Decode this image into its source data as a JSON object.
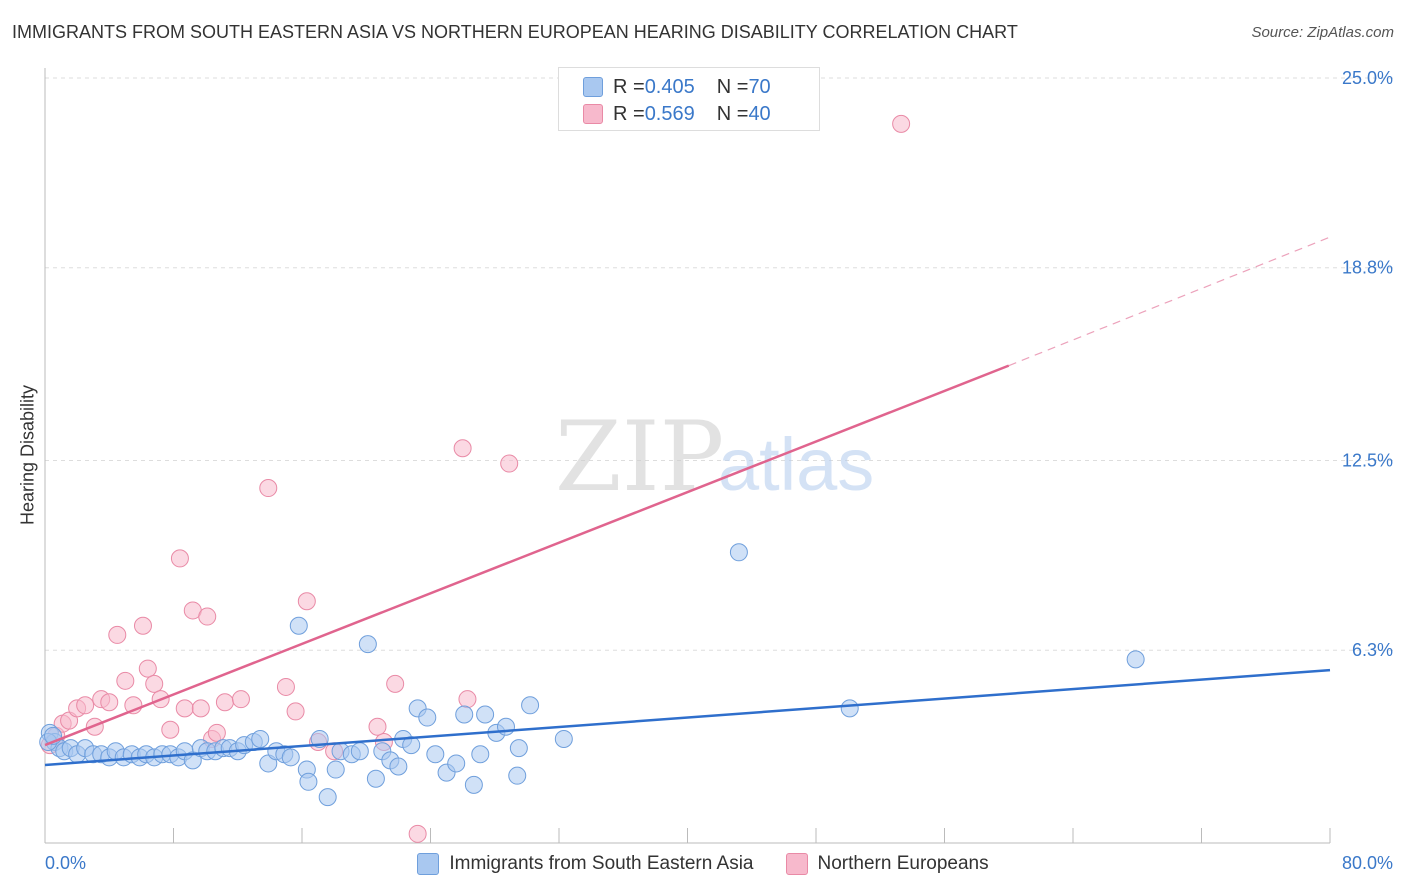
{
  "header": {
    "title": "IMMIGRANTS FROM SOUTH EASTERN ASIA VS NORTHERN EUROPEAN HEARING DISABILITY CORRELATION CHART",
    "source": "Source: ZipAtlas.com"
  },
  "legend": {
    "blue": {
      "r_label": "R = ",
      "r_value": "0.405",
      "n_label": "N = ",
      "n_value": "70"
    },
    "pink": {
      "r_label": "R = ",
      "r_value": "0.569",
      "n_label": "N = ",
      "n_value": "40"
    }
  },
  "watermark": {
    "zip": "ZIP",
    "atlas": "atlas"
  },
  "colors": {
    "blue_fill": "#a9c8f0",
    "blue_stroke": "#6f9fdc",
    "blue_line": "#2f6fcc",
    "pink_fill": "#f7b9cc",
    "pink_stroke": "#e98aa6",
    "pink_line": "#e0648e",
    "axis_label": "#3a78c9",
    "grid": "#dddddd"
  },
  "chart_data": {
    "type": "scatter",
    "title": "IMMIGRANTS FROM SOUTH EASTERN ASIA VS NORTHERN EUROPEAN HEARING DISABILITY CORRELATION CHART",
    "xlabel": "",
    "ylabel": "Hearing Disability",
    "xlim": [
      0,
      80
    ],
    "ylim": [
      0,
      25
    ],
    "x_tick_labels": [
      "0.0%",
      "80.0%"
    ],
    "y_ticks": [
      6.3,
      12.5,
      18.8,
      25.0
    ],
    "y_tick_labels": [
      "6.3%",
      "12.5%",
      "18.8%",
      "25.0%"
    ],
    "grid": true,
    "legend_position": "top-center",
    "series": [
      {
        "name": "Immigrants from South Eastern Asia",
        "color": "#a9c8f0",
        "points": [
          [
            0.3,
            3.6
          ],
          [
            0.6,
            3.3
          ],
          [
            0.9,
            3.1
          ],
          [
            1.2,
            3.0
          ],
          [
            1.6,
            3.1
          ],
          [
            2.0,
            2.9
          ],
          [
            2.5,
            3.1
          ],
          [
            3.0,
            2.9
          ],
          [
            3.5,
            2.9
          ],
          [
            4.0,
            2.8
          ],
          [
            4.4,
            3.0
          ],
          [
            4.9,
            2.8
          ],
          [
            5.4,
            2.9
          ],
          [
            5.9,
            2.8
          ],
          [
            6.3,
            2.9
          ],
          [
            6.8,
            2.8
          ],
          [
            7.3,
            2.9
          ],
          [
            7.8,
            2.9
          ],
          [
            8.3,
            2.8
          ],
          [
            8.7,
            3.0
          ],
          [
            9.2,
            2.7
          ],
          [
            9.7,
            3.1
          ],
          [
            10.1,
            3.0
          ],
          [
            10.6,
            3.0
          ],
          [
            11.1,
            3.1
          ],
          [
            11.5,
            3.1
          ],
          [
            12.0,
            3.0
          ],
          [
            12.4,
            3.2
          ],
          [
            13.0,
            3.3
          ],
          [
            13.4,
            3.4
          ],
          [
            13.9,
            2.6
          ],
          [
            14.4,
            3.0
          ],
          [
            14.9,
            2.9
          ],
          [
            15.3,
            2.8
          ],
          [
            15.8,
            7.1
          ],
          [
            16.3,
            2.4
          ],
          [
            16.4,
            2.0
          ],
          [
            17.1,
            3.4
          ],
          [
            17.6,
            1.5
          ],
          [
            18.1,
            2.4
          ],
          [
            18.4,
            3.0
          ],
          [
            19.1,
            2.9
          ],
          [
            19.6,
            3.0
          ],
          [
            20.1,
            6.5
          ],
          [
            20.6,
            2.1
          ],
          [
            21.0,
            3.0
          ],
          [
            21.5,
            2.7
          ],
          [
            22.0,
            2.5
          ],
          [
            22.3,
            3.4
          ],
          [
            22.8,
            3.2
          ],
          [
            23.2,
            4.4
          ],
          [
            23.8,
            4.1
          ],
          [
            24.3,
            2.9
          ],
          [
            25.0,
            2.3
          ],
          [
            25.6,
            2.6
          ],
          [
            26.1,
            4.2
          ],
          [
            26.7,
            1.9
          ],
          [
            27.1,
            2.9
          ],
          [
            27.4,
            4.2
          ],
          [
            28.1,
            3.6
          ],
          [
            28.7,
            3.8
          ],
          [
            29.4,
            2.2
          ],
          [
            29.5,
            3.1
          ],
          [
            30.2,
            4.5
          ],
          [
            32.3,
            3.4
          ],
          [
            43.2,
            9.5
          ],
          [
            50.1,
            4.4
          ],
          [
            67.9,
            6.0
          ],
          [
            0.2,
            3.3
          ],
          [
            0.5,
            3.5
          ]
        ],
        "trend": {
          "x0": 0,
          "y0": 2.55,
          "x1": 80,
          "y1": 5.65
        }
      },
      {
        "name": "Northern Europeans",
        "color": "#f7b9cc",
        "points": [
          [
            0.3,
            3.2
          ],
          [
            0.7,
            3.5
          ],
          [
            1.1,
            3.9
          ],
          [
            1.5,
            4.0
          ],
          [
            2.0,
            4.4
          ],
          [
            2.5,
            4.5
          ],
          [
            3.1,
            3.8
          ],
          [
            3.5,
            4.7
          ],
          [
            4.0,
            4.6
          ],
          [
            4.5,
            6.8
          ],
          [
            5.0,
            5.3
          ],
          [
            5.5,
            4.5
          ],
          [
            6.1,
            7.1
          ],
          [
            6.4,
            5.7
          ],
          [
            6.8,
            5.2
          ],
          [
            7.2,
            4.7
          ],
          [
            7.8,
            3.7
          ],
          [
            8.4,
            9.3
          ],
          [
            8.7,
            4.4
          ],
          [
            9.2,
            7.6
          ],
          [
            9.7,
            4.4
          ],
          [
            10.1,
            7.4
          ],
          [
            10.4,
            3.4
          ],
          [
            10.7,
            3.6
          ],
          [
            11.2,
            4.6
          ],
          [
            12.2,
            4.7
          ],
          [
            13.9,
            11.6
          ],
          [
            15.0,
            5.1
          ],
          [
            15.6,
            4.3
          ],
          [
            16.3,
            7.9
          ],
          [
            17.0,
            3.3
          ],
          [
            18.0,
            3.0
          ],
          [
            20.7,
            3.8
          ],
          [
            21.1,
            3.3
          ],
          [
            21.8,
            5.2
          ],
          [
            23.2,
            0.3
          ],
          [
            26.0,
            12.9
          ],
          [
            26.3,
            4.7
          ],
          [
            28.9,
            12.4
          ],
          [
            53.3,
            23.5
          ]
        ],
        "trend": {
          "x0": 0,
          "y0": 3.2,
          "x1": 60,
          "y1": 15.6
        },
        "trend_dashed": {
          "x0": 60,
          "y0": 15.6,
          "x1": 80,
          "y1": 19.8
        }
      }
    ]
  },
  "bottom_legend": {
    "blue_label": "Immigrants from South Eastern Asia",
    "pink_label": "Northern Europeans"
  }
}
